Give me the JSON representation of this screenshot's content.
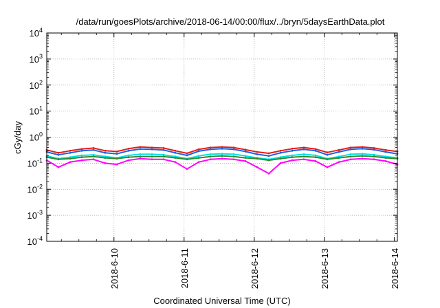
{
  "chart_data": {
    "type": "line",
    "title": "/data/run/goesPlots/archive/2018-06-14/00:00/flux/../bryn/5daysEarthData.plot",
    "xlabel": "Coordinated Universal Time (UTC)",
    "ylabel": "cGy/day",
    "yscale": "log",
    "ylim": [
      0.0001,
      10000
    ],
    "xlim": [
      "2018-06-09T01:00",
      "2018-06-14T01:00"
    ],
    "grid": true,
    "legend": "none",
    "x_ticks": [
      "2018-6-10",
      "2018-6-11",
      "2018-6-12",
      "2018-6-13",
      "2018-6-14"
    ],
    "y_ticks": [
      {
        "mantissa": "10",
        "exp": "-4",
        "value": 0.0001
      },
      {
        "mantissa": "10",
        "exp": "-3",
        "value": 0.001
      },
      {
        "mantissa": "10",
        "exp": "-2",
        "value": 0.01
      },
      {
        "mantissa": "10",
        "exp": "-1",
        "value": 0.1
      },
      {
        "mantissa": "10",
        "exp": "0",
        "value": 1
      },
      {
        "mantissa": "10",
        "exp": "1",
        "value": 10
      },
      {
        "mantissa": "10",
        "exp": "2",
        "value": 100
      },
      {
        "mantissa": "10",
        "exp": "3",
        "value": 1000
      },
      {
        "mantissa": "10",
        "exp": "4",
        "value": 10000
      }
    ],
    "x": [
      "2018-06-09T01:00",
      "2018-06-09T05:00",
      "2018-06-09T09:00",
      "2018-06-09T13:00",
      "2018-06-09T17:00",
      "2018-06-09T21:00",
      "2018-06-10T01:00",
      "2018-06-10T05:00",
      "2018-06-10T09:00",
      "2018-06-10T13:00",
      "2018-06-10T17:00",
      "2018-06-10T21:00",
      "2018-06-11T01:00",
      "2018-06-11T05:00",
      "2018-06-11T09:00",
      "2018-06-11T13:00",
      "2018-06-11T17:00",
      "2018-06-11T21:00",
      "2018-06-12T01:00",
      "2018-06-12T05:00",
      "2018-06-12T09:00",
      "2018-06-12T13:00",
      "2018-06-12T17:00",
      "2018-06-12T21:00",
      "2018-06-13T01:00",
      "2018-06-13T05:00",
      "2018-06-13T09:00",
      "2018-06-13T13:00",
      "2018-06-13T17:00",
      "2018-06-13T21:00",
      "2018-06-14T01:00"
    ],
    "series": [
      {
        "color": "#e51e10",
        "values": [
          0.32,
          0.25,
          0.3,
          0.35,
          0.38,
          0.3,
          0.28,
          0.36,
          0.42,
          0.4,
          0.38,
          0.3,
          0.24,
          0.34,
          0.4,
          0.42,
          0.4,
          0.33,
          0.27,
          0.24,
          0.3,
          0.36,
          0.4,
          0.35,
          0.26,
          0.32,
          0.4,
          0.42,
          0.38,
          0.32,
          0.28
        ]
      },
      {
        "color": "#1f5fe8",
        "values": [
          0.27,
          0.21,
          0.25,
          0.3,
          0.32,
          0.25,
          0.23,
          0.3,
          0.35,
          0.34,
          0.32,
          0.25,
          0.2,
          0.29,
          0.34,
          0.36,
          0.34,
          0.28,
          0.22,
          0.19,
          0.25,
          0.3,
          0.34,
          0.3,
          0.21,
          0.27,
          0.34,
          0.36,
          0.33,
          0.27,
          0.23
        ]
      },
      {
        "color": "#00e0e0",
        "values": [
          0.19,
          0.15,
          0.17,
          0.2,
          0.21,
          0.18,
          0.16,
          0.2,
          0.22,
          0.22,
          0.21,
          0.18,
          0.15,
          0.19,
          0.22,
          0.23,
          0.22,
          0.19,
          0.16,
          0.14,
          0.17,
          0.2,
          0.22,
          0.2,
          0.15,
          0.18,
          0.22,
          0.23,
          0.21,
          0.18,
          0.16
        ]
      },
      {
        "color": "#2e8b2e",
        "values": [
          0.17,
          0.14,
          0.15,
          0.17,
          0.18,
          0.16,
          0.15,
          0.17,
          0.18,
          0.18,
          0.18,
          0.16,
          0.14,
          0.16,
          0.18,
          0.19,
          0.18,
          0.16,
          0.15,
          0.13,
          0.15,
          0.17,
          0.18,
          0.17,
          0.14,
          0.16,
          0.18,
          0.19,
          0.18,
          0.16,
          0.15
        ]
      },
      {
        "color": "#ff00ff",
        "values": [
          0.13,
          0.07,
          0.11,
          0.13,
          0.14,
          0.1,
          0.09,
          0.13,
          0.15,
          0.14,
          0.14,
          0.11,
          0.06,
          0.11,
          0.14,
          0.15,
          0.14,
          0.12,
          0.07,
          0.04,
          0.1,
          0.13,
          0.14,
          0.12,
          0.07,
          0.11,
          0.14,
          0.15,
          0.14,
          0.12,
          0.09
        ]
      }
    ]
  }
}
